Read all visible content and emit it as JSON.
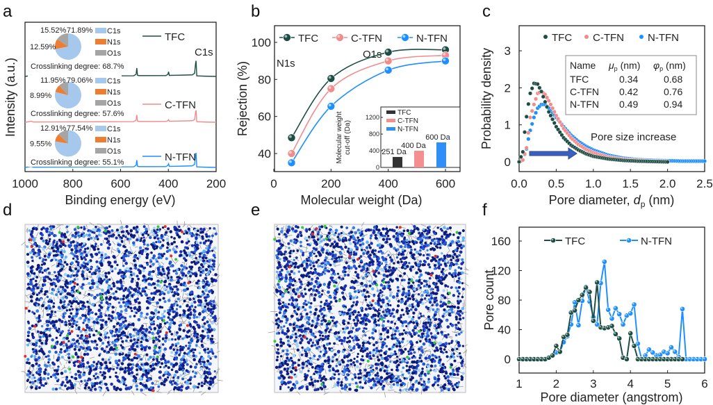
{
  "colors": {
    "TFC": "#1d4d44",
    "C-TFN": "#f28b8b",
    "N-TFN": "#1e8fff",
    "C1s": "#a6c8ec",
    "N1s": "#ed7d31",
    "O1s": "#a5a5a5"
  },
  "panels": [
    "a",
    "b",
    "c",
    "d",
    "e",
    "f"
  ],
  "chart_data": [
    {
      "panel": "a",
      "type": "line",
      "xlabel": "Binding energy (eV)",
      "ylabel": "Intensity (a.u.)",
      "xlim": [
        1000,
        200
      ],
      "xticks": [
        "1000",
        "800",
        "600",
        "400",
        "200"
      ],
      "peak_labels": [
        "O1s",
        "N1s",
        "C1s"
      ],
      "series": [
        {
          "name": "TFC",
          "points": [
            [
              1000,
              0
            ],
            [
              985,
              1
            ],
            [
              975,
              2
            ],
            [
              965,
              0.5
            ],
            [
              900,
              0.6
            ],
            [
              700,
              1
            ],
            [
              545,
              1.2
            ],
            [
              535,
              4
            ],
            [
              532,
              16
            ],
            [
              529,
              2
            ],
            [
              520,
              1.5
            ],
            [
              410,
              1.6
            ],
            [
              402,
              4
            ],
            [
              399,
              9
            ],
            [
              396,
              2
            ],
            [
              340,
              2.5
            ],
            [
              300,
              3
            ],
            [
              290,
              6
            ],
            [
              286,
              25
            ],
            [
              284,
              30
            ],
            [
              281,
              1
            ],
            [
              250,
              0.5
            ],
            [
              200,
              0
            ]
          ]
        },
        {
          "name": "C-TFN",
          "points": [
            [
              1000,
              0
            ],
            [
              985,
              1
            ],
            [
              975,
              2
            ],
            [
              965,
              0.5
            ],
            [
              900,
              0.6
            ],
            [
              700,
              1
            ],
            [
              545,
              1.2
            ],
            [
              535,
              4
            ],
            [
              532,
              14
            ],
            [
              529,
              2
            ],
            [
              520,
              1.5
            ],
            [
              410,
              1.6
            ],
            [
              402,
              3
            ],
            [
              399,
              5
            ],
            [
              396,
              2
            ],
            [
              340,
              2.5
            ],
            [
              300,
              3
            ],
            [
              290,
              5
            ],
            [
              286,
              20
            ],
            [
              284,
              23
            ],
            [
              281,
              1
            ],
            [
              250,
              0.5
            ],
            [
              200,
              0
            ]
          ]
        },
        {
          "name": "N-TFN",
          "points": [
            [
              1000,
              0
            ],
            [
              985,
              1
            ],
            [
              975,
              2
            ],
            [
              965,
              0.5
            ],
            [
              900,
              0.6
            ],
            [
              700,
              1
            ],
            [
              545,
              1.2
            ],
            [
              535,
              4
            ],
            [
              532,
              14
            ],
            [
              529,
              2
            ],
            [
              520,
              1.5
            ],
            [
              410,
              1.6
            ],
            [
              402,
              4
            ],
            [
              399,
              7
            ],
            [
              396,
              2
            ],
            [
              340,
              2.5
            ],
            [
              300,
              3
            ],
            [
              290,
              6
            ],
            [
              286,
              24
            ],
            [
              284,
              28
            ],
            [
              281,
              1
            ],
            [
              250,
              0.5
            ],
            [
              200,
              0
            ]
          ]
        }
      ],
      "pies": [
        {
          "name": "TFC",
          "C1s": 71.89,
          "N1s": 12.59,
          "O1s": 15.52,
          "labels": [
            "15.52%",
            "71.89%",
            "12.59%"
          ],
          "crosslinking": "Crosslinking degree: 68.7%"
        },
        {
          "name": "C-TFN",
          "C1s": 79.06,
          "N1s": 8.99,
          "O1s": 11.95,
          "labels": [
            "11.95%",
            "79.06%",
            "8.99%"
          ],
          "crosslinking": "Crosslinking degree: 57.6%"
        },
        {
          "name": "N-TFN",
          "C1s": 77.54,
          "N1s": 9.55,
          "O1s": 12.91,
          "labels": [
            "12.91%",
            "77.54%",
            "9.55%"
          ],
          "crosslinking": "Crosslinking degree: 55.1%"
        }
      ],
      "pie_legend": [
        "C1s",
        "N1s",
        "O1s"
      ]
    },
    {
      "panel": "b",
      "type": "line",
      "xlabel": "Molecular weight (Da)",
      "ylabel": "Rejection (%)",
      "xlim": [
        0,
        660
      ],
      "ylim": [
        30,
        108
      ],
      "xticks": [
        "0",
        "200",
        "400",
        "600"
      ],
      "yticks": [
        "40",
        "60",
        "80",
        "100"
      ],
      "legend": "top",
      "series": [
        {
          "name": "TFC",
          "x": [
            62,
            200,
            400,
            600
          ],
          "y": [
            48.5,
            80.5,
            94.7,
            96
          ]
        },
        {
          "name": "C-TFN",
          "x": [
            62,
            200,
            400,
            600
          ],
          "y": [
            40,
            75,
            90,
            93
          ]
        },
        {
          "name": "N-TFN",
          "x": [
            62,
            200,
            400,
            600
          ],
          "y": [
            35,
            65.5,
            85,
            90
          ]
        }
      ],
      "inset": {
        "type": "bar",
        "ylabel": "Molecular weight cut-off (Da)",
        "ylabel_lines": [
          "Molecular weight",
          "cut-off (Da)"
        ],
        "ylim": [
          0,
          1400
        ],
        "yticks": [
          "0",
          "400",
          "800",
          "1200"
        ],
        "categories": [
          "TFC",
          "C-TFN",
          "N-TFN"
        ],
        "values": [
          251,
          400,
          600
        ],
        "data_labels": [
          "251 Da",
          "400 Da",
          "600 Da"
        ]
      }
    },
    {
      "panel": "c",
      "type": "scatter",
      "xlabel": "Pore diameter, ",
      "xlabel_var": "d",
      "xlabel_sub": "p",
      "xlabel_unit": " (nm)",
      "ylabel": "Probability density",
      "xlim": [
        0,
        2.5
      ],
      "ylim": [
        -0.25,
        3.7
      ],
      "xticks": [
        "0.0",
        "0.5",
        "1.0",
        "1.5",
        "2.0",
        "2.5"
      ],
      "yticks": [
        "0",
        "1",
        "2",
        "3"
      ],
      "annotation": "Pore size increase",
      "series": [
        {
          "name": "TFC",
          "x": [
            0,
            0.05,
            0.07,
            0.1,
            0.13,
            0.15,
            0.2,
            0.25,
            0.3,
            0.35,
            0.4,
            0.5,
            0.6,
            0.7,
            0.8,
            0.9,
            1.0,
            1.2,
            1.4,
            1.6,
            1.8,
            2.0
          ],
          "y": [
            0,
            0.27,
            0.72,
            1.22,
            1.63,
            1.85,
            2.12,
            2.1,
            1.9,
            1.62,
            1.35,
            0.95,
            0.65,
            0.45,
            0.32,
            0.22,
            0.15,
            0.08,
            0.04,
            0.02,
            0.01,
            0.0
          ]
        },
        {
          "name": "C-TFN",
          "x": [
            0,
            0.05,
            0.1,
            0.12,
            0.15,
            0.2,
            0.25,
            0.3,
            0.35,
            0.4,
            0.5,
            0.6,
            0.7,
            0.8,
            0.9,
            1.0,
            1.2,
            1.4,
            1.6,
            1.8,
            2.0
          ],
          "y": [
            0,
            0.05,
            0.38,
            0.7,
            1.2,
            1.55,
            1.85,
            1.9,
            1.82,
            1.65,
            1.25,
            0.9,
            0.65,
            0.47,
            0.34,
            0.25,
            0.13,
            0.07,
            0.04,
            0.02,
            0.01
          ]
        },
        {
          "name": "N-TFN",
          "x": [
            0,
            0.05,
            0.1,
            0.12,
            0.15,
            0.2,
            0.25,
            0.3,
            0.35,
            0.4,
            0.5,
            0.6,
            0.7,
            0.8,
            0.9,
            1.0,
            1.2,
            1.4,
            1.6,
            1.8,
            2.0,
            2.2,
            2.5
          ],
          "y": [
            0,
            0.05,
            0.35,
            0.57,
            0.85,
            1.2,
            1.45,
            1.55,
            1.55,
            1.45,
            1.2,
            0.95,
            0.72,
            0.55,
            0.42,
            0.32,
            0.18,
            0.1,
            0.06,
            0.04,
            0.03,
            0.02,
            0.02
          ]
        }
      ],
      "table": {
        "headers": [
          "Name",
          "μp (nm)",
          "φp (nm)"
        ],
        "header_parts": [
          [
            "Name",
            "",
            ""
          ],
          [
            "μ",
            "p",
            " (nm)"
          ],
          [
            "φ",
            "p",
            " (nm)"
          ]
        ],
        "rows": [
          [
            "TFC",
            "0.34",
            "0.68"
          ],
          [
            "C-TFN",
            "0.42",
            "0.76"
          ],
          [
            "N-TFN",
            "0.49",
            "0.94"
          ]
        ]
      }
    },
    {
      "panel": "f",
      "type": "line",
      "xlabel": "Pore diameter (angstrom)",
      "ylabel": "Pore count",
      "xlim": [
        1,
        6
      ],
      "ylim": [
        -20,
        180
      ],
      "xticks": [
        "1",
        "2",
        "3",
        "4",
        "5",
        "6"
      ],
      "yticks": [
        "0",
        "40",
        "80",
        "120",
        "160"
      ],
      "legend": "top",
      "series": [
        {
          "name": "TFC",
          "x": [
            1.0,
            1.1,
            1.2,
            1.3,
            1.4,
            1.5,
            1.6,
            1.7,
            1.8,
            1.9,
            2.0,
            2.1,
            2.2,
            2.3,
            2.4,
            2.5,
            2.6,
            2.7,
            2.8,
            2.9,
            3.0,
            3.1,
            3.2,
            3.3,
            3.4,
            3.5,
            3.6,
            3.7,
            3.8,
            3.9,
            4.0,
            4.1,
            4.2,
            4.3,
            4.4,
            4.5,
            4.6,
            4.7,
            4.8,
            4.9,
            5.0,
            5.1,
            5.2,
            5.3,
            5.4
          ],
          "y": [
            0,
            0,
            0,
            0,
            0,
            0,
            0,
            0,
            2,
            5,
            18,
            10,
            30,
            33,
            63,
            66,
            80,
            87,
            97,
            91,
            52,
            104,
            43,
            42,
            43,
            45,
            34,
            28,
            2,
            0,
            35,
            18,
            0,
            0,
            0,
            0,
            0,
            0,
            0,
            0,
            0,
            0,
            0,
            0,
            0
          ]
        },
        {
          "name": "N-TFN",
          "x": [
            1.0,
            1.1,
            1.2,
            1.3,
            1.4,
            1.5,
            1.6,
            1.7,
            1.8,
            1.9,
            2.0,
            2.1,
            2.2,
            2.3,
            2.4,
            2.5,
            2.6,
            2.7,
            2.8,
            2.9,
            3.0,
            3.1,
            3.2,
            3.3,
            3.4,
            3.5,
            3.6,
            3.7,
            3.8,
            3.9,
            4.0,
            4.1,
            4.2,
            4.3,
            4.4,
            4.5,
            4.6,
            4.7,
            4.8,
            4.9,
            5.0,
            5.1,
            5.2,
            5.3,
            5.4,
            5.5,
            5.6,
            5.7,
            5.8,
            5.9,
            6.0
          ],
          "y": [
            0,
            0,
            0,
            0,
            0,
            0,
            0,
            0,
            2,
            5,
            9,
            10,
            23,
            31,
            47,
            77,
            46,
            79,
            98,
            78,
            57,
            47,
            103,
            132,
            67,
            55,
            69,
            61,
            47,
            59,
            62,
            74,
            21,
            0,
            5,
            13,
            9,
            5,
            6,
            10,
            8,
            16,
            10,
            3,
            68,
            0,
            0,
            0,
            0,
            0,
            0
          ]
        }
      ]
    }
  ]
}
